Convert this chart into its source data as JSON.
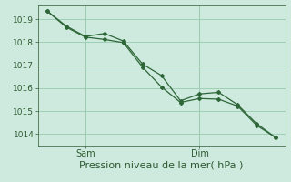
{
  "background_color": "#ceeade",
  "plot_bg_color": "#ceeade",
  "grid_color": "#9ecfb4",
  "line_color": "#2d6637",
  "ylim": [
    1013.5,
    1019.6
  ],
  "yticks": [
    1014,
    1015,
    1016,
    1017,
    1018,
    1019
  ],
  "xlabel": "Pression niveau de la mer( hPa )",
  "xlabel_color": "#2d5a30",
  "xlabel_fontsize": 8,
  "tick_color": "#2d5a30",
  "ytick_fontsize": 6.5,
  "xtick_fontsize": 7,
  "line1_x": [
    0,
    1,
    2,
    3,
    4,
    5,
    6,
    7,
    8,
    9,
    10,
    11,
    12
  ],
  "line1_y": [
    1019.35,
    1018.7,
    1018.25,
    1018.38,
    1018.05,
    1017.05,
    1016.55,
    1015.45,
    1015.75,
    1015.82,
    1015.28,
    1014.45,
    1013.85
  ],
  "line2_x": [
    0,
    1,
    2,
    3,
    4,
    5,
    6,
    7,
    8,
    9,
    10,
    11,
    12
  ],
  "line2_y": [
    1019.35,
    1018.65,
    1018.22,
    1018.12,
    1017.98,
    1016.92,
    1016.05,
    1015.38,
    1015.55,
    1015.52,
    1015.22,
    1014.38,
    1013.85
  ],
  "sam_tick_x": 2,
  "dim_tick_x": 8,
  "xlim_left": -0.5,
  "xlim_right": 12.5
}
